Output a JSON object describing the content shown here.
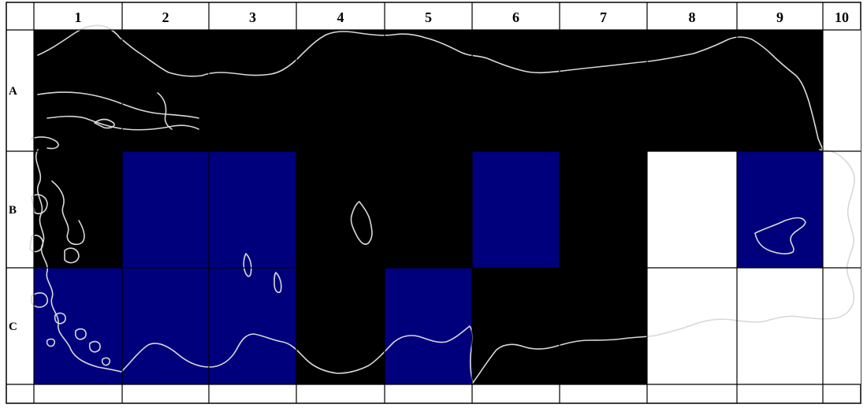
{
  "map": {
    "columns": [
      "1",
      "2",
      "3",
      "4",
      "5",
      "6",
      "7",
      "8",
      "9",
      "10"
    ],
    "rows": [
      "A",
      "B",
      "C"
    ],
    "colors": {
      "black": "#000000",
      "blue": "#00007d",
      "white": "#ffffff"
    },
    "cells": [
      {
        "row": "A",
        "col": "1",
        "color": "black"
      },
      {
        "row": "A",
        "col": "2",
        "color": "black"
      },
      {
        "row": "A",
        "col": "3",
        "color": "black"
      },
      {
        "row": "A",
        "col": "4",
        "color": "black"
      },
      {
        "row": "A",
        "col": "5",
        "color": "black"
      },
      {
        "row": "A",
        "col": "6",
        "color": "black"
      },
      {
        "row": "A",
        "col": "7",
        "color": "black"
      },
      {
        "row": "A",
        "col": "8",
        "color": "black"
      },
      {
        "row": "A",
        "col": "9",
        "color": "black"
      },
      {
        "row": "A",
        "col": "10",
        "color": "white"
      },
      {
        "row": "B",
        "col": "1",
        "color": "black"
      },
      {
        "row": "B",
        "col": "2",
        "color": "blue"
      },
      {
        "row": "B",
        "col": "3",
        "color": "blue"
      },
      {
        "row": "B",
        "col": "4",
        "color": "black"
      },
      {
        "row": "B",
        "col": "5",
        "color": "black"
      },
      {
        "row": "B",
        "col": "6",
        "color": "blue"
      },
      {
        "row": "B",
        "col": "7",
        "color": "black"
      },
      {
        "row": "B",
        "col": "8",
        "color": "white"
      },
      {
        "row": "B",
        "col": "9",
        "color": "blue"
      },
      {
        "row": "B",
        "col": "10",
        "color": "white"
      },
      {
        "row": "C",
        "col": "1",
        "color": "blue"
      },
      {
        "row": "C",
        "col": "2",
        "color": "blue"
      },
      {
        "row": "C",
        "col": "3",
        "color": "blue"
      },
      {
        "row": "C",
        "col": "4",
        "color": "black"
      },
      {
        "row": "C",
        "col": "5",
        "color": "blue"
      },
      {
        "row": "C",
        "col": "6",
        "color": "black"
      },
      {
        "row": "C",
        "col": "7",
        "color": "black"
      },
      {
        "row": "C",
        "col": "8",
        "color": "white"
      },
      {
        "row": "C",
        "col": "9",
        "color": "white"
      },
      {
        "row": "C",
        "col": "10",
        "color": "white"
      }
    ]
  }
}
